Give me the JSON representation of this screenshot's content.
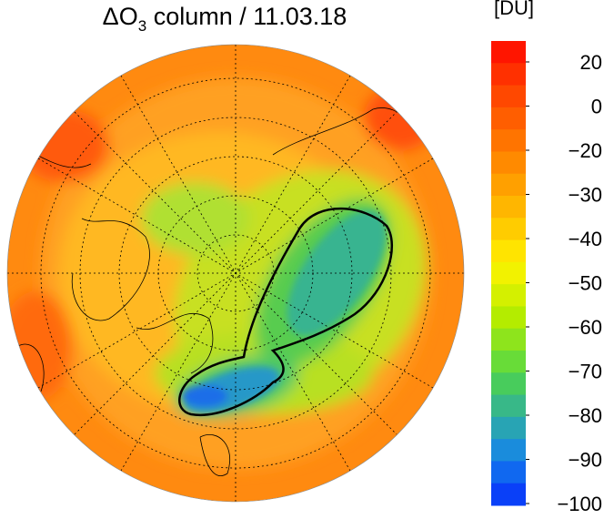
{
  "map": {
    "title": {
      "prefix": "ΔO",
      "sub": "3",
      "rest": " column / 11.03.18"
    },
    "colorbar": {
      "unit_label": "[DU]",
      "colors": [
        "#ff1500",
        "#ff3000",
        "#ff4800",
        "#ff5e00",
        "#ff7400",
        "#ff8a00",
        "#ffa000",
        "#ffb600",
        "#ffcc00",
        "#ffe400",
        "#f2f200",
        "#d4f000",
        "#b4ec00",
        "#8ee41c",
        "#68dc38",
        "#48cc5c",
        "#38b888",
        "#28a4b4",
        "#1a8cdc",
        "#1068f0",
        "#0a40f8"
      ],
      "ticks": [
        20,
        0,
        {
          "value": -20,
          "label": "−20"
        },
        {
          "value": -30,
          "label": "−30"
        },
        {
          "value": -40,
          "label": "−40"
        },
        {
          "value": -50,
          "label": "−50"
        },
        {
          "value": -60,
          "label": "−60"
        },
        {
          "value": -70,
          "label": "−70"
        },
        {
          "value": -80,
          "label": "−80"
        },
        {
          "value": -90,
          "label": "−90"
        },
        {
          "value": -100,
          "label": "−100"
        }
      ]
    }
  }
}
